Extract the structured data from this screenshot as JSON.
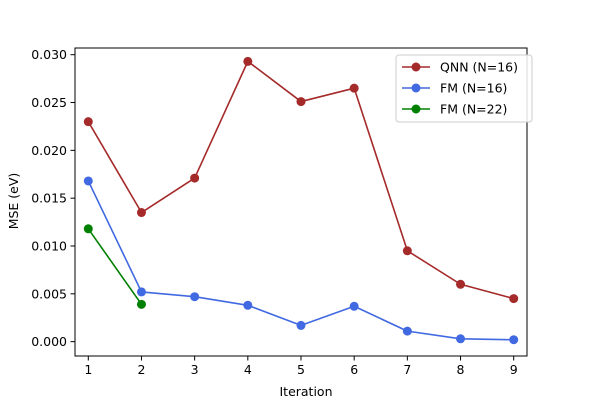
{
  "chart_data": {
    "type": "line",
    "xlabel": "Iteration",
    "ylabel": "MSE (eV)",
    "xlim": [
      0.75,
      9.25
    ],
    "ylim": [
      -0.0015,
      0.0307
    ],
    "xticks": [
      1,
      2,
      3,
      4,
      5,
      6,
      7,
      8,
      9
    ],
    "xtick_labels": [
      "1",
      "2",
      "3",
      "4",
      "5",
      "6",
      "7",
      "8",
      "9"
    ],
    "yticks": [
      0.0,
      0.005,
      0.01,
      0.015,
      0.02,
      0.025,
      0.03
    ],
    "ytick_labels": [
      "0.000",
      "0.005",
      "0.010",
      "0.015",
      "0.020",
      "0.025",
      "0.030"
    ],
    "grid": false,
    "legend_position": "top-right",
    "series": [
      {
        "name": "QNN (N=16)",
        "color": "#a52a2a",
        "x": [
          1,
          2,
          3,
          4,
          5,
          6,
          7,
          8,
          9
        ],
        "y": [
          0.023,
          0.0135,
          0.0171,
          0.0293,
          0.0251,
          0.0265,
          0.0095,
          0.006,
          0.0045
        ]
      },
      {
        "name": "FM (N=16)",
        "color": "#4169e1",
        "x": [
          1,
          2,
          3,
          4,
          5,
          6,
          7,
          8,
          9
        ],
        "y": [
          0.0168,
          0.0052,
          0.0047,
          0.0038,
          0.0017,
          0.0037,
          0.0011,
          0.0003,
          0.0002
        ]
      },
      {
        "name": "FM (N=22)",
        "color": "#008000",
        "x": [
          1,
          2
        ],
        "y": [
          0.0118,
          0.0039
        ]
      }
    ]
  }
}
